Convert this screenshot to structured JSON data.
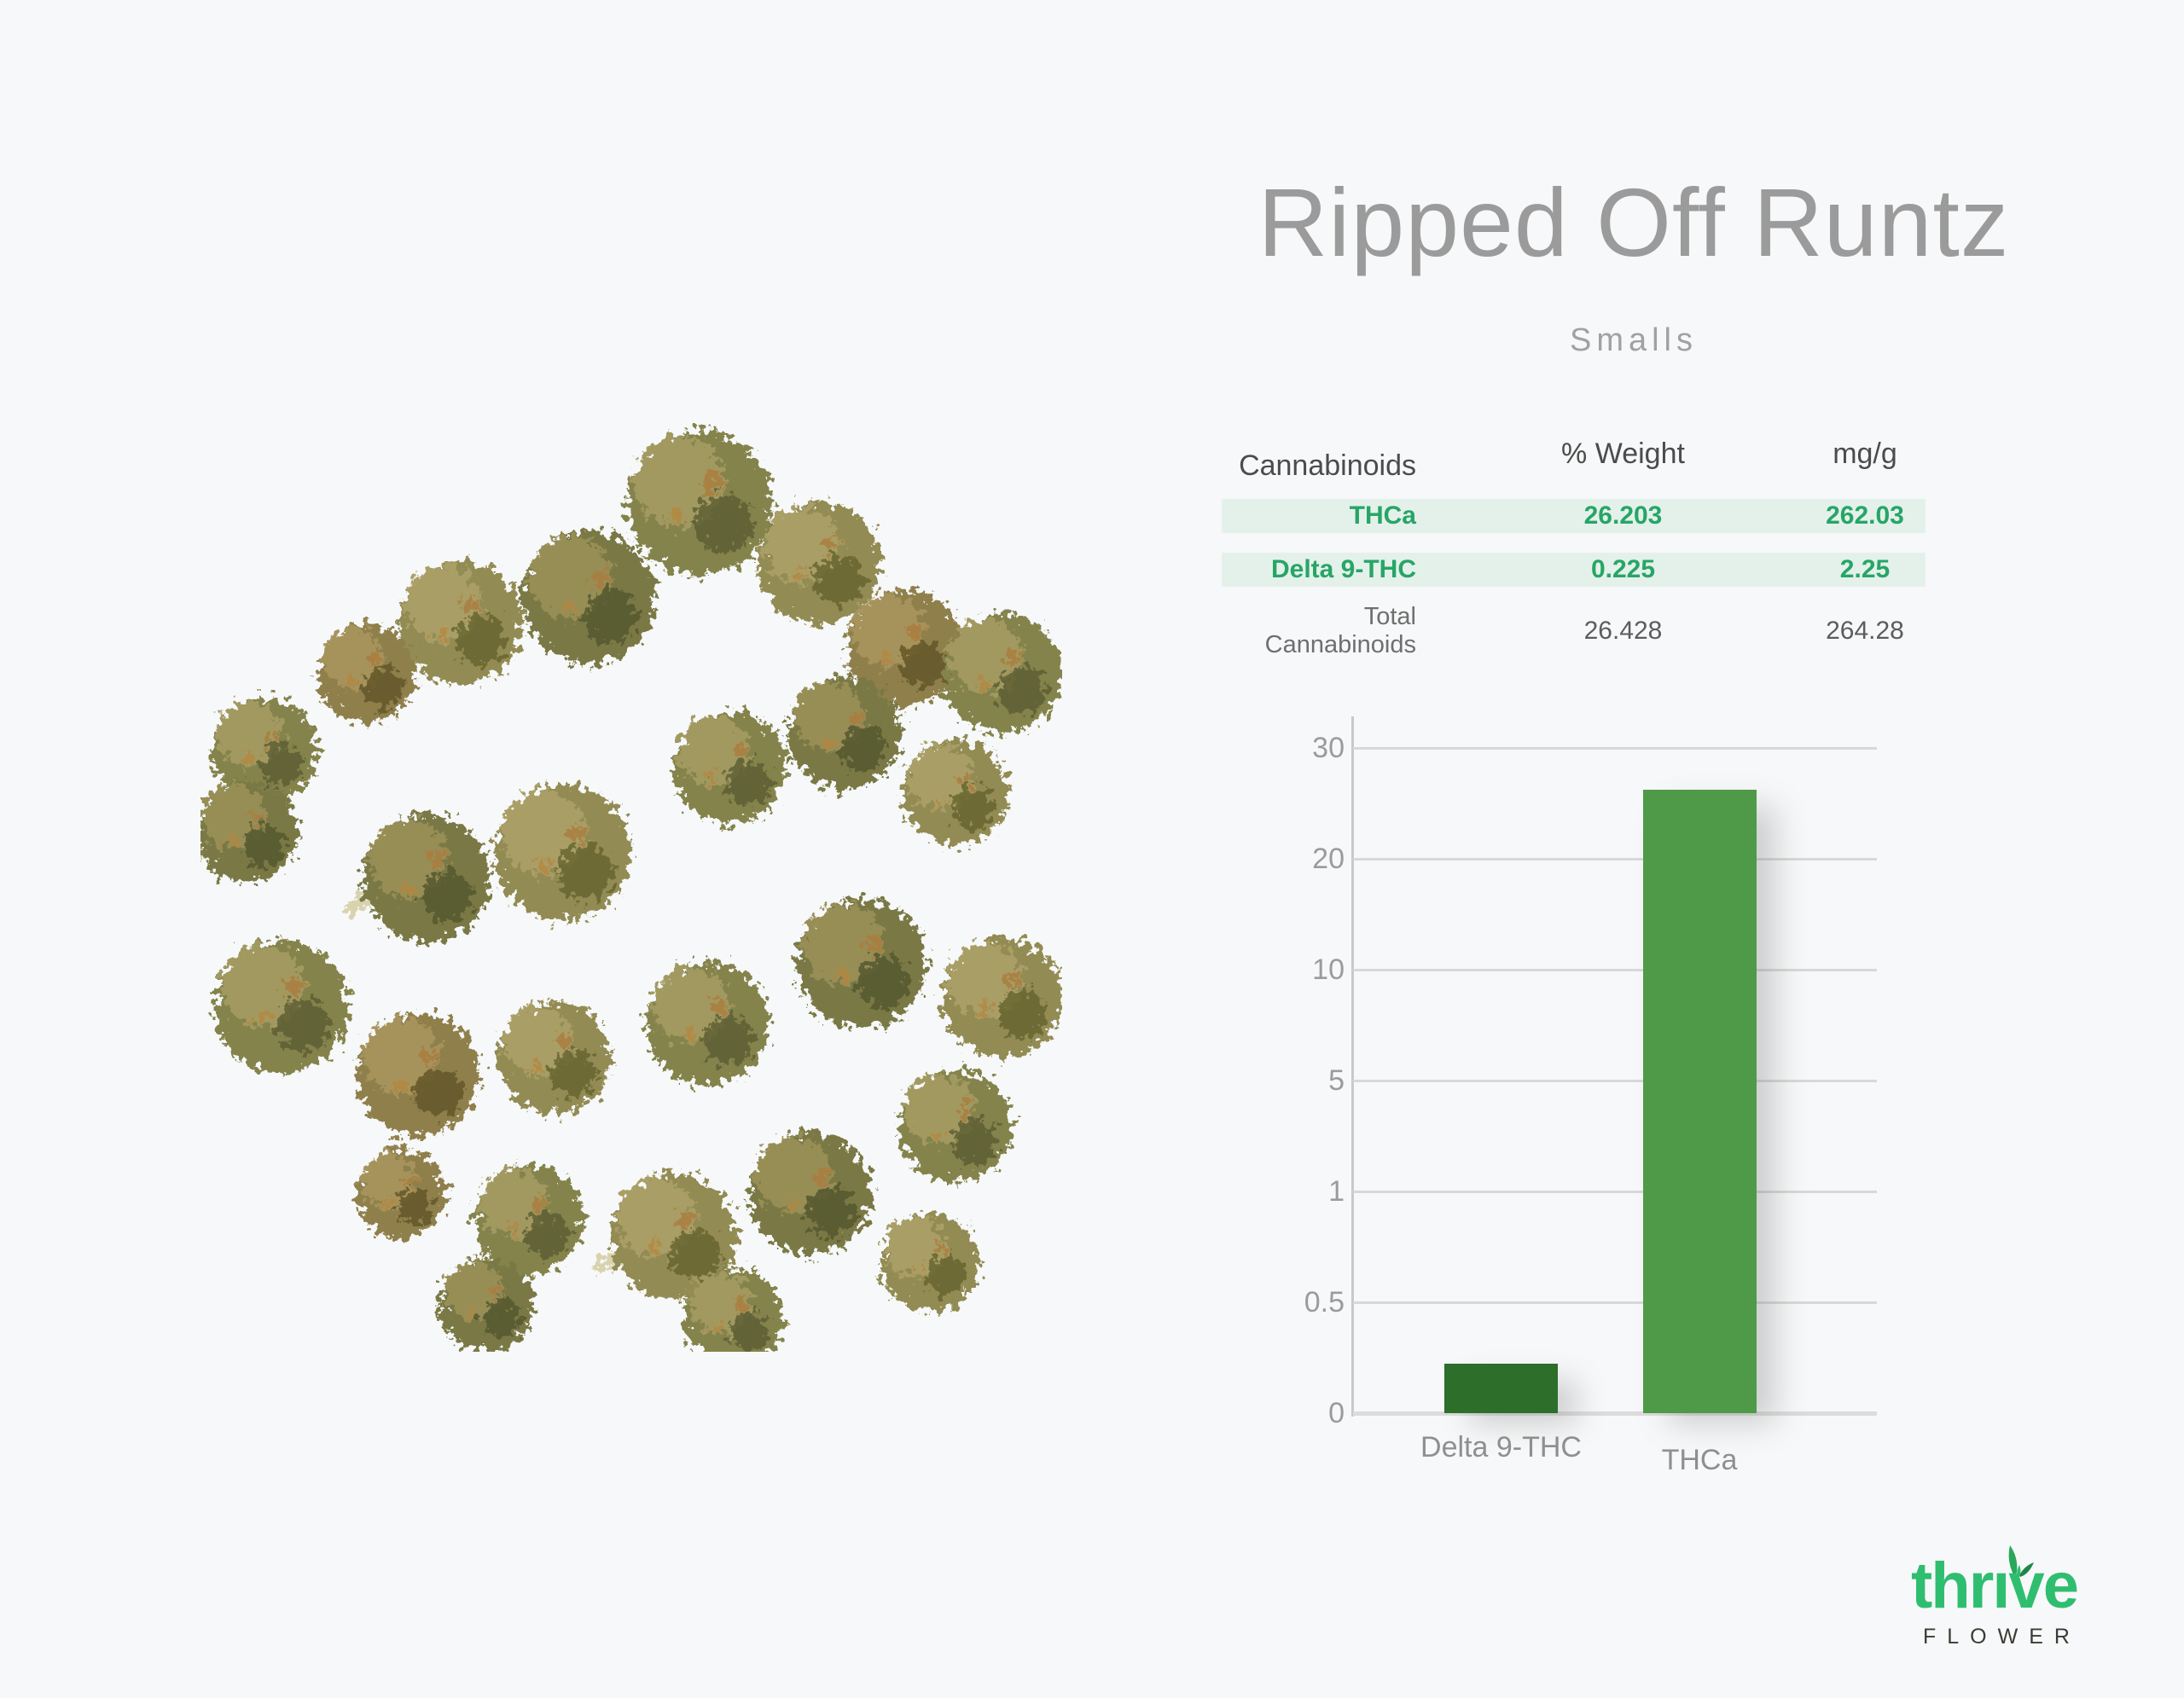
{
  "page": {
    "title": "Ripped Off Runtz",
    "subtitle": "Smalls",
    "background": "#f7f8f9"
  },
  "table": {
    "headers": [
      "Cannabinoids",
      "% Weight",
      "mg/g"
    ],
    "rows": [
      {
        "label": "THCa",
        "pct_weight": "26.203",
        "mg_g": "262.03",
        "highlight": true
      },
      {
        "label": "Delta 9-THC",
        "pct_weight": "0.225",
        "mg_g": "2.25",
        "highlight": true
      },
      {
        "label": "Total Cannabinoids",
        "pct_weight": "26.428",
        "mg_g": "264.28",
        "highlight": false
      }
    ],
    "colors": {
      "accent_text": "#27a567",
      "row_bg": "#e4f1ea"
    }
  },
  "chart_data": {
    "type": "bar",
    "categories": [
      "Delta 9-THC",
      "THCa"
    ],
    "values": [
      0.225,
      26.203
    ],
    "yticks": [
      0,
      0.5,
      1,
      5,
      10,
      20,
      30
    ],
    "ylim": [
      0,
      30
    ],
    "grid": true,
    "legend": "none",
    "title": "",
    "xlabel": "",
    "ylabel": "",
    "bar_colors": [
      "#2c6e2a",
      "#4f9a48"
    ],
    "grid_color": "#d8d8d8",
    "tick_color": "#9b9b9b"
  },
  "logo": {
    "brand": "thrive",
    "sub": "FLOWER",
    "color": "#2fbe70"
  }
}
